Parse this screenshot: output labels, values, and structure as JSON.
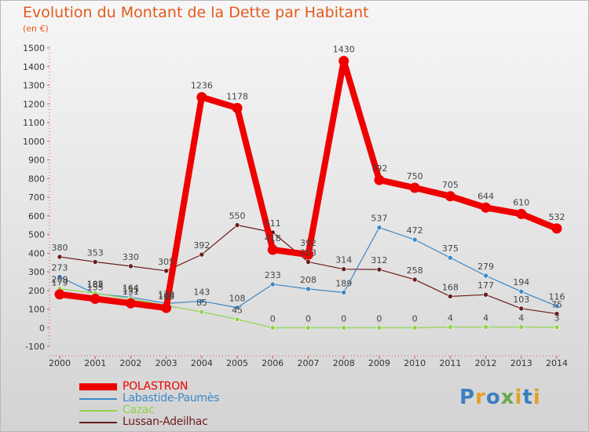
{
  "title": "Evolution du Montant de la Dette par Habitant",
  "subtitle": "(en €)",
  "logo": {
    "text": "Proxiti",
    "letter_colors": [
      "#3a7fc4",
      "#e2a02a",
      "#3a7fc4",
      "#6aa84f",
      "#e2a02a",
      "#3a7fc4",
      "#e2a02a"
    ]
  },
  "chart_data": {
    "type": "line",
    "title": "Evolution du Montant de la Dette par Habitant",
    "subtitle": "(en €)",
    "xlabel": "",
    "ylabel": "",
    "x": [
      "2000",
      "2001",
      "2002",
      "2003",
      "2004",
      "2005",
      "2006",
      "2007",
      "2008",
      "2009",
      "2010",
      "2011",
      "2012",
      "2013",
      "2014"
    ],
    "ylim": [
      -100,
      1500
    ],
    "yticks": [
      -100,
      0,
      100,
      200,
      300,
      400,
      500,
      600,
      700,
      800,
      900,
      1000,
      1100,
      1200,
      1300,
      1400,
      1500
    ],
    "grid": false,
    "legend_position": "bottom-left",
    "series": [
      {
        "name": "POLASTRON",
        "color": "#ee0000",
        "values": [
          179,
          155,
          131,
          106,
          1236,
          1178,
          418,
          392,
          1430,
          792,
          750,
          705,
          644,
          610,
          532
        ],
        "labels": [
          "179",
          "155",
          "131",
          "106",
          "1236",
          "1178",
          "418",
          "392",
          "1430",
          "792",
          "750",
          "705",
          "644",
          "610",
          "532"
        ]
      },
      {
        "name": "Labastide-Paumès",
        "color": "#3b88c8",
        "values": [
          273,
          182,
          164,
          130,
          143,
          108,
          233,
          208,
          189,
          537,
          472,
          375,
          279,
          194,
          116
        ],
        "labels": [
          "273",
          "182",
          "164",
          "130",
          "143",
          "108",
          "233",
          "208",
          "189",
          "537",
          "472",
          "375",
          "279",
          "194",
          "116"
        ]
      },
      {
        "name": "Cazac",
        "color": "#8fd34a",
        "values": [
          209,
          185,
          155,
          119,
          85,
          45,
          0,
          0,
          0,
          0,
          0,
          4,
          4,
          4,
          3
        ],
        "labels": [
          "209",
          "185",
          "155",
          "119",
          "85",
          "45",
          "0",
          "0",
          "0",
          "0",
          "0",
          "4",
          "4",
          "4",
          "3"
        ]
      },
      {
        "name": "Lussan-Adeilhac",
        "color": "#6b1d1d",
        "values": [
          380,
          353,
          330,
          305,
          392,
          550,
          511,
          353,
          314,
          312,
          258,
          168,
          177,
          103,
          75
        ],
        "labels": [
          "380",
          "353",
          "330",
          "305",
          "392",
          "550",
          "511",
          "353",
          "314",
          "312",
          "258",
          "168",
          "177",
          "103",
          "75"
        ]
      }
    ]
  }
}
